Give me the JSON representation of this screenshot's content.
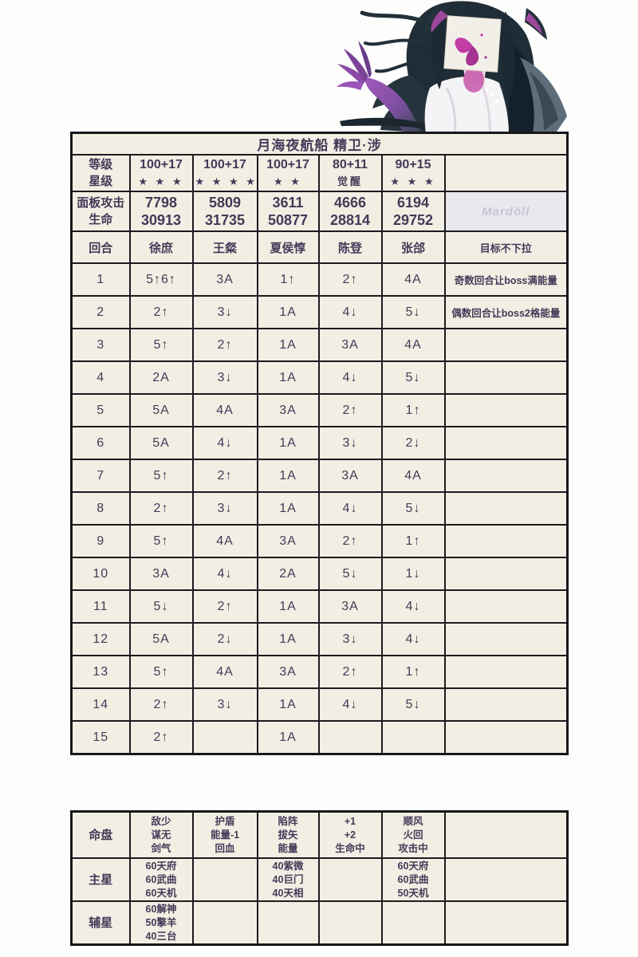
{
  "title": "月海夜航船 精卫·涉",
  "watermark": "Mardöll",
  "colors": {
    "cell_bg": "#f3eee3",
    "text": "#413b58",
    "border": "#1b1b20",
    "watermark_bg": "#e9e8ef",
    "art_purple": "#9a4fb4",
    "art_magenta": "#c23ca6",
    "art_hair": "#1f2d36"
  },
  "stats": {
    "labels": {
      "level_label": "等级",
      "star_label": "星级",
      "atk_label": "面板攻击",
      "hp_label": "生命"
    },
    "columns": [
      {
        "level": "100+17",
        "stars": "★ ★ ★",
        "atk": "7798",
        "hp": "30913"
      },
      {
        "level": "100+17",
        "stars": "★ ★ ★ ★",
        "atk": "5809",
        "hp": "31735"
      },
      {
        "level": "100+17",
        "stars": "★ ★",
        "atk": "3611",
        "hp": "50877"
      },
      {
        "level": "80+11",
        "stars": "觉醒",
        "atk": "4666",
        "hp": "28814"
      },
      {
        "level": "90+15",
        "stars": "★ ★ ★",
        "atk": "6194",
        "hp": "29752"
      }
    ]
  },
  "rounds": {
    "header": [
      "回合",
      "徐庶",
      "王粲",
      "夏侯惇",
      "陈登",
      "张郃",
      "目标不下拉"
    ],
    "rows": [
      [
        "1",
        "5↑6↑",
        "3A",
        "1↑",
        "2↑",
        "4A",
        "奇数回合让boss满能量"
      ],
      [
        "2",
        "2↑",
        "3↓",
        "1A",
        "4↓",
        "5↓",
        "偶数回合让boss2格能量"
      ],
      [
        "3",
        "5↑",
        "2↑",
        "1A",
        "3A",
        "4A",
        ""
      ],
      [
        "4",
        "2A",
        "3↓",
        "1A",
        "4↓",
        "5↓",
        ""
      ],
      [
        "5",
        "5A",
        "4A",
        "3A",
        "2↑",
        "1↑",
        ""
      ],
      [
        "6",
        "5A",
        "4↓",
        "1A",
        "3↓",
        "2↓",
        ""
      ],
      [
        "7",
        "5↑",
        "2↑",
        "1A",
        "3A",
        "4A",
        ""
      ],
      [
        "8",
        "2↑",
        "3↓",
        "1A",
        "4↓",
        "5↓",
        ""
      ],
      [
        "9",
        "5↑",
        "4A",
        "3A",
        "2↑",
        "1↑",
        ""
      ],
      [
        "10",
        "3A",
        "4↓",
        "2A",
        "5↓",
        "1↓",
        ""
      ],
      [
        "11",
        "5↓",
        "2↑",
        "1A",
        "3A",
        "4↓",
        ""
      ],
      [
        "12",
        "5A",
        "2↓",
        "1A",
        "3↓",
        "4↓",
        ""
      ],
      [
        "13",
        "5↑",
        "4A",
        "3A",
        "2↑",
        "1↑",
        ""
      ],
      [
        "14",
        "2↑",
        "3↓",
        "1A",
        "4↓",
        "5↓",
        ""
      ],
      [
        "15",
        "2↑",
        "",
        "1A",
        "",
        "",
        ""
      ]
    ]
  },
  "build": {
    "rows": [
      {
        "label": "命盘",
        "cells": [
          [
            "敌少",
            "谋无",
            "剑气"
          ],
          [
            "护盾",
            "能量-1",
            "回血"
          ],
          [
            "陷阵",
            "拔矢",
            "能量"
          ],
          [
            "+1",
            "+2",
            "生命中"
          ],
          [
            "顺风",
            "火回",
            "攻击中"
          ],
          []
        ]
      },
      {
        "label": "主星",
        "cells": [
          [
            "60天府",
            "60武曲",
            "60天机"
          ],
          [],
          [
            "40紫微",
            "40巨门",
            "40天相"
          ],
          [],
          [
            "60天府",
            "60武曲",
            "50天机"
          ],
          []
        ]
      },
      {
        "label": "辅星",
        "cells": [
          [
            "60解神",
            "50擎羊",
            "40三台"
          ],
          [],
          [],
          [],
          [],
          []
        ]
      }
    ]
  }
}
